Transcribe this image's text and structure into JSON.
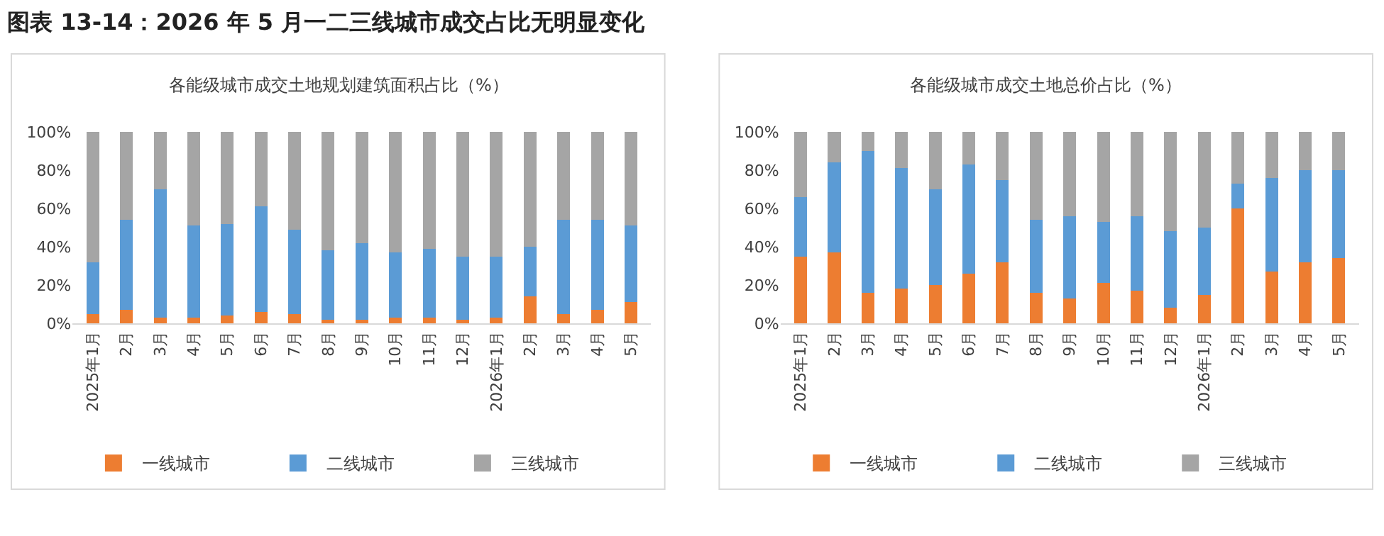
{
  "chart_data": [
    {
      "type": "bar",
      "stacked": true,
      "title": "各能级城市成交土地规划建筑面积占比（%）",
      "annotations": [
        "图表 13-14：2026 年 5 月一二三线城市成交占比无明显变化"
      ],
      "categories": [
        "2025年1月",
        "2月",
        "3月",
        "4月",
        "5月",
        "6月",
        "7月",
        "8月",
        "9月",
        "10月",
        "11月",
        "12月",
        "2026年1月",
        "2月",
        "3月",
        "4月",
        "5月"
      ],
      "series": [
        {
          "name": "一线城市",
          "color": "#ed7d31",
          "values": [
            5,
            7,
            3,
            3,
            4,
            6,
            5,
            2,
            2,
            3,
            3,
            2,
            3,
            14,
            5,
            7,
            11
          ]
        },
        {
          "name": "二线城市",
          "color": "#5b9bd5",
          "values": [
            27,
            47,
            67,
            48,
            48,
            55,
            44,
            36,
            40,
            34,
            36,
            33,
            32,
            26,
            49,
            47,
            40
          ]
        },
        {
          "name": "三线城市",
          "color": "#a5a5a5",
          "values": [
            68,
            46,
            30,
            49,
            48,
            39,
            51,
            62,
            58,
            63,
            61,
            65,
            65,
            60,
            46,
            46,
            49
          ]
        }
      ],
      "ylim": [
        0,
        100
      ],
      "yticks": [
        {
          "value": 0,
          "label": "0%"
        },
        {
          "value": 20,
          "label": "20%"
        },
        {
          "value": 40,
          "label": "40%"
        },
        {
          "value": 60,
          "label": "60%"
        },
        {
          "value": 80,
          "label": "80%"
        },
        {
          "value": 100,
          "label": "100%"
        }
      ],
      "grid": false,
      "legend": "bottom"
    },
    {
      "type": "bar",
      "stacked": true,
      "title": "各能级城市成交土地总价占比（%）",
      "categories": [
        "2025年1月",
        "2月",
        "3月",
        "4月",
        "5月",
        "6月",
        "7月",
        "8月",
        "9月",
        "10月",
        "11月",
        "12月",
        "2026年1月",
        "2月",
        "3月",
        "4月",
        "5月"
      ],
      "series": [
        {
          "name": "一线城市",
          "color": "#ed7d31",
          "values": [
            35,
            37,
            16,
            18,
            20,
            26,
            32,
            16,
            13,
            21,
            17,
            8,
            15,
            60,
            27,
            32,
            34
          ]
        },
        {
          "name": "二线城市",
          "color": "#5b9bd5",
          "values": [
            31,
            47,
            74,
            63,
            50,
            57,
            43,
            38,
            43,
            32,
            39,
            40,
            35,
            13,
            49,
            48,
            46
          ]
        },
        {
          "name": "三线城市",
          "color": "#a5a5a5",
          "values": [
            34,
            16,
            10,
            19,
            30,
            17,
            25,
            46,
            44,
            47,
            44,
            52,
            50,
            27,
            24,
            20,
            20
          ]
        }
      ],
      "ylim": [
        0,
        100
      ],
      "yticks": [
        {
          "value": 0,
          "label": "0%"
        },
        {
          "value": 20,
          "label": "20%"
        },
        {
          "value": 40,
          "label": "40%"
        },
        {
          "value": 60,
          "label": "60%"
        },
        {
          "value": 80,
          "label": "80%"
        },
        {
          "value": 100,
          "label": "100%"
        }
      ],
      "grid": false,
      "legend": "bottom"
    }
  ]
}
